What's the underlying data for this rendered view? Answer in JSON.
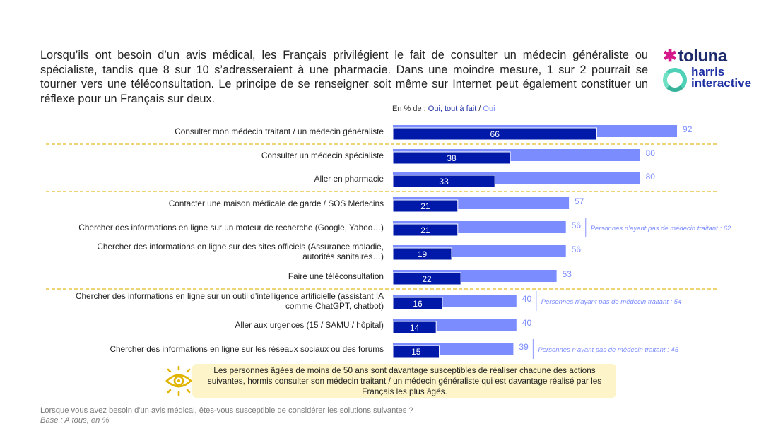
{
  "headline": "Lorsqu’ils ont besoin d’un avis médical, les Français privilégient le fait de consulter un médecin généraliste ou spécialiste, tandis que 8 sur 10 s’adresseraient à une pharmacie. Dans une moindre mesure, 1 sur 2 pourrait se tourner vers une téléconsultation. Le principe de se renseigner soit même sur Internet peut également constituer un réflexe pour un Français sur deux.",
  "logo": {
    "brand1": "toluna",
    "brand2_line1": "harris",
    "brand2_line2": "interactive",
    "star_icon": "asterisk-star-icon"
  },
  "legend": {
    "prefix": "En % de : ",
    "series1": "Oui, tout à fait",
    "separator": " / ",
    "series2": "Oui"
  },
  "colors": {
    "dark_bar": "#0019a8",
    "light_bar": "#7b8cff",
    "separator": "#e8c547",
    "note_bg": "#fdf5c9",
    "eye_icon": "#e0b400"
  },
  "chart_data": {
    "type": "bar",
    "orientation": "horizontal",
    "title": "En % de : Oui, tout à fait / Oui",
    "xlabel": "",
    "ylabel": "",
    "xlim": [
      0,
      100
    ],
    "grid": false,
    "legend_position": "top",
    "categories": [
      "Consulter mon médecin traitant / un médecin généraliste",
      "Consulter un médecin spécialiste",
      "Aller en pharmacie",
      "Contacter une maison médicale de garde / SOS Médecins",
      "Chercher des informations en ligne sur un moteur de recherche (Google, Yahoo…)",
      "Chercher des informations en ligne sur des sites officiels (Assurance maladie, autorités sanitaires…)",
      "Faire une téléconsultation",
      "Chercher des informations en ligne sur un outil d’intelligence artificielle (assistant IA comme ChatGPT, chatbot)",
      "Aller aux urgences (15 / SAMU / hôpital)",
      "Chercher des informations en ligne sur les réseaux sociaux ou des forums"
    ],
    "label_lines": [
      [
        "Consulter mon médecin traitant / un médecin généraliste"
      ],
      [
        "Consulter un médecin spécialiste"
      ],
      [
        "Aller en pharmacie"
      ],
      [
        "Contacter une maison médicale de garde / SOS Médecins"
      ],
      [
        "Chercher des informations en ligne sur un moteur de recherche (Google, Yahoo…)"
      ],
      [
        "Chercher des informations en ligne sur des sites officiels (Assurance maladie,",
        "autorités sanitaires…)"
      ],
      [
        "Faire une téléconsultation"
      ],
      [
        "Chercher des informations en ligne sur un outil d’intelligence artificielle (assistant IA",
        "comme ChatGPT, chatbot)"
      ],
      [
        "Aller aux urgences (15 / SAMU / hôpital)"
      ],
      [
        "Chercher des informations en ligne sur les réseaux sociaux ou des forums"
      ]
    ],
    "series": [
      {
        "name": "Oui, tout à fait",
        "values": [
          66,
          38,
          33,
          21,
          21,
          19,
          22,
          16,
          14,
          15
        ]
      },
      {
        "name": "Oui (total)",
        "values": [
          92,
          80,
          80,
          57,
          56,
          56,
          53,
          40,
          40,
          39
        ]
      }
    ],
    "separators_after_index": [
      0,
      2,
      6
    ],
    "annotations": [
      {
        "index": 4,
        "text": "Personnes n’ayant pas de médecin traitant : 62"
      },
      {
        "index": 7,
        "text": "Personnes n’ayant pas de médecin traitant : 54"
      },
      {
        "index": 9,
        "text": "Personnes n’ayant pas de médecin traitant : 45"
      }
    ]
  },
  "note": {
    "icon": "eye-icon",
    "text": "Les personnes âgées de moins de 50 ans sont davantage susceptibles de réaliser chacune des actions suivantes, hormis consulter son médecin traitant / un médecin généraliste qui est davantage réalisé par les Français les plus âgés."
  },
  "footer": {
    "question": "Lorsque vous avez besoin d'un avis médical, êtes-vous susceptible de considérer les solutions suivantes ?",
    "base": "Base : A tous, en %"
  }
}
